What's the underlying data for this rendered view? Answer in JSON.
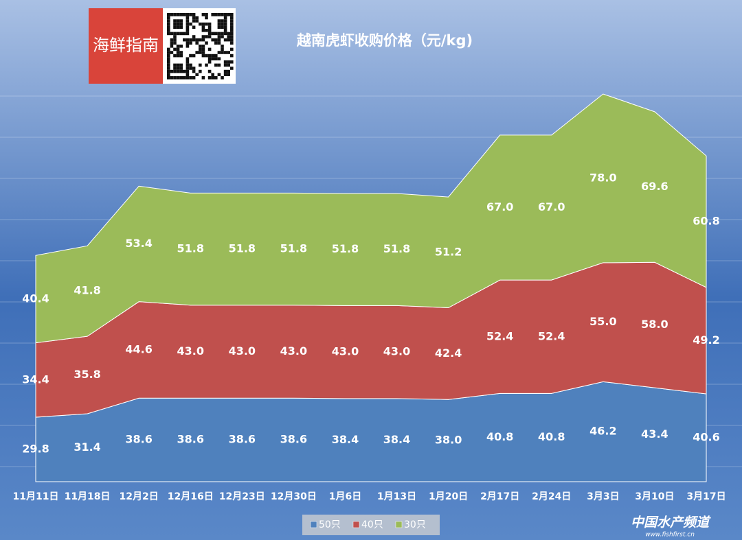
{
  "logo": "海鲜指南",
  "watermark": {
    "name": "中国水产频道",
    "url": "www.fishfirst.cn"
  },
  "chart_data": {
    "type": "stacked-area",
    "title": "越南虎虾收购价格（元/kg)",
    "categories": [
      "11月11日",
      "11月18日",
      "12月2日",
      "12月16日",
      "12月23日",
      "12月30日",
      "1月6日",
      "1月13日",
      "1月20日",
      "2月17日",
      "2月24日",
      "3月3日",
      "3月10日",
      "3月17日"
    ],
    "series": [
      {
        "name": "50只",
        "color": "#4f81bd",
        "values": [
          29.8,
          31.4,
          38.6,
          38.6,
          38.6,
          38.6,
          38.4,
          38.4,
          38.0,
          40.8,
          40.8,
          46.2,
          43.4,
          40.6
        ],
        "value_labels": [
          "29.8",
          "31.4",
          "38.6",
          "38.6",
          "38.6",
          "38.6",
          "38.4",
          "38.4",
          "38.0",
          "40.8",
          "40.8",
          "46.2",
          "43.4",
          "40.6"
        ]
      },
      {
        "name": "40只",
        "color": "#c0504d",
        "values": [
          34.4,
          35.8,
          44.6,
          43.0,
          43.0,
          43.0,
          43.0,
          43.0,
          42.4,
          52.4,
          52.4,
          55.0,
          58.0,
          49.2
        ],
        "value_labels": [
          "34.4",
          "35.8",
          "44.6",
          "43.0",
          "43.0",
          "43.0",
          "43.0",
          "43.0",
          "42.4",
          "52.4",
          "52.4",
          "55.0",
          "58.0",
          "49.2"
        ]
      },
      {
        "name": "30只",
        "color": "#9bbb59",
        "values": [
          40.4,
          41.8,
          53.4,
          51.8,
          51.8,
          51.8,
          51.8,
          51.8,
          51.2,
          67.0,
          67.0,
          78.0,
          69.6,
          60.8
        ],
        "value_labels": [
          "40.4",
          "41.8",
          "53.4",
          "51.8",
          "51.8",
          "51.8",
          "51.8",
          "51.8",
          "51.2",
          "67.0",
          "67.0",
          "78.0",
          "69.6",
          "60.8"
        ]
      }
    ]
  }
}
